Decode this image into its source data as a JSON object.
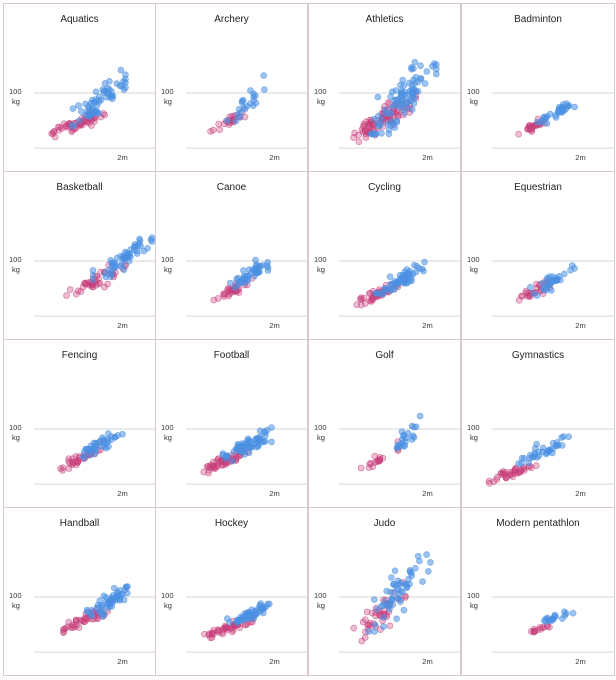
{
  "colors": {
    "male": "#4a90e2",
    "female": "#c8407c",
    "gridline": "#d6d6d6",
    "border": "#d9c9cd"
  },
  "chart_data": {
    "type": "scatter",
    "xlabel": "",
    "ylabel": "",
    "x_tick_label": "2m",
    "y_tick_label_value": "100",
    "y_tick_label_unit": "kg",
    "x_unit": "m",
    "y_unit": "kg",
    "xlim": [
      1.4,
      2.2
    ],
    "ylim": [
      25,
      180
    ],
    "x_tick": 2.0,
    "y_ticks": [
      100,
      30
    ],
    "grid": "horizontal",
    "series": [],
    "panels": [
      {
        "title": "Aquatics",
        "male": {
          "h": [
            1.62,
            2.02
          ],
          "w": [
            58,
            125
          ],
          "n": 60
        },
        "female": {
          "h": [
            1.52,
            1.88
          ],
          "w": [
            48,
            82
          ],
          "n": 60
        }
      },
      {
        "title": "Archery",
        "male": {
          "h": [
            1.68,
            1.95
          ],
          "w": [
            62,
            120
          ],
          "n": 22
        },
        "female": {
          "h": [
            1.55,
            1.8
          ],
          "w": [
            48,
            82
          ],
          "n": 22
        }
      },
      {
        "title": "Athletics",
        "male": {
          "h": [
            1.62,
            2.06
          ],
          "w": [
            52,
            155
          ],
          "n": 90
        },
        "female": {
          "h": [
            1.48,
            1.92
          ],
          "w": [
            42,
            105
          ],
          "n": 90
        }
      },
      {
        "title": "Badminton",
        "male": {
          "h": [
            1.7,
            1.96
          ],
          "w": [
            62,
            92
          ],
          "n": 30
        },
        "female": {
          "h": [
            1.58,
            1.8
          ],
          "w": [
            50,
            70
          ],
          "n": 26
        }
      },
      {
        "title": "Basketball",
        "male": {
          "h": [
            1.8,
            2.2
          ],
          "w": [
            80,
            135
          ],
          "n": 55
        },
        "female": {
          "h": [
            1.62,
            2.02
          ],
          "w": [
            55,
            100
          ],
          "n": 45
        }
      },
      {
        "title": "Canoe",
        "male": {
          "h": [
            1.7,
            2.0
          ],
          "w": [
            70,
            108
          ],
          "n": 45
        },
        "female": {
          "h": [
            1.58,
            1.85
          ],
          "w": [
            52,
            80
          ],
          "n": 35
        }
      },
      {
        "title": "Cycling",
        "male": {
          "h": [
            1.65,
            1.98
          ],
          "w": [
            58,
            100
          ],
          "n": 55
        },
        "female": {
          "h": [
            1.52,
            1.8
          ],
          "w": [
            45,
            75
          ],
          "n": 45
        }
      },
      {
        "title": "Equestrian",
        "male": {
          "h": [
            1.66,
            1.97
          ],
          "w": [
            60,
            95
          ],
          "n": 32
        },
        "female": {
          "h": [
            1.55,
            1.8
          ],
          "w": [
            48,
            78
          ],
          "n": 28
        }
      },
      {
        "title": "Fencing",
        "male": {
          "h": [
            1.7,
            2.0
          ],
          "w": [
            65,
            100
          ],
          "n": 40
        },
        "female": {
          "h": [
            1.58,
            1.85
          ],
          "w": [
            50,
            80
          ],
          "n": 36
        }
      },
      {
        "title": "Football",
        "male": {
          "h": [
            1.65,
            1.98
          ],
          "w": [
            62,
            100
          ],
          "n": 60
        },
        "female": {
          "h": [
            1.52,
            1.82
          ],
          "w": [
            48,
            75
          ],
          "n": 55
        }
      },
      {
        "title": "Golf",
        "male": {
          "h": [
            1.7,
            1.95
          ],
          "w": [
            65,
            115
          ],
          "n": 22
        },
        "female": {
          "h": [
            1.55,
            1.8
          ],
          "w": [
            50,
            80
          ],
          "n": 18
        }
      },
      {
        "title": "Gymnastics",
        "male": {
          "h": [
            1.58,
            1.92
          ],
          "w": [
            55,
            95
          ],
          "n": 35
        },
        "female": {
          "h": [
            1.38,
            1.7
          ],
          "w": [
            35,
            60
          ],
          "n": 40
        }
      },
      {
        "title": "Handball",
        "male": {
          "h": [
            1.76,
            2.08
          ],
          "w": [
            78,
            118
          ],
          "n": 55
        },
        "female": {
          "h": [
            1.6,
            1.9
          ],
          "w": [
            58,
            90
          ],
          "n": 45
        }
      },
      {
        "title": "Hockey",
        "male": {
          "h": [
            1.68,
            1.98
          ],
          "w": [
            65,
            95
          ],
          "n": 50
        },
        "female": {
          "h": [
            1.52,
            1.85
          ],
          "w": [
            50,
            75
          ],
          "n": 48
        }
      },
      {
        "title": "Judo",
        "male": {
          "h": [
            1.6,
            2.02
          ],
          "w": [
            60,
            175
          ],
          "n": 55
        },
        "female": {
          "h": [
            1.5,
            1.85
          ],
          "w": [
            48,
            120
          ],
          "n": 45
        }
      },
      {
        "title": "Modern pentathlon",
        "male": {
          "h": [
            1.72,
            1.95
          ],
          "w": [
            68,
            85
          ],
          "n": 18
        },
        "female": {
          "h": [
            1.62,
            1.8
          ],
          "w": [
            52,
            66
          ],
          "n": 14
        }
      }
    ]
  }
}
